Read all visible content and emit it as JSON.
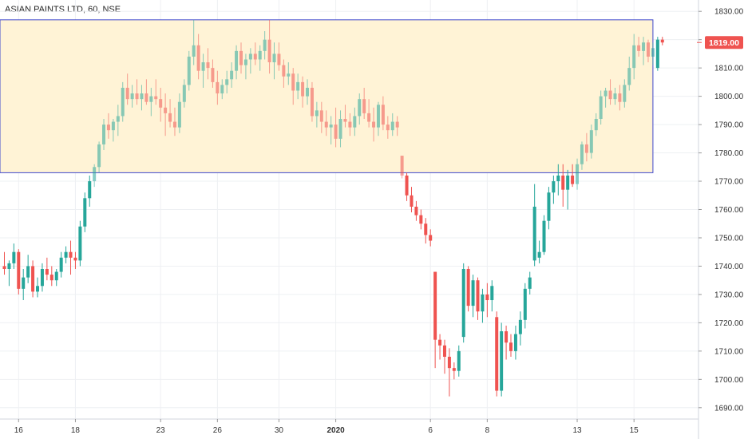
{
  "chart_data": {
    "type": "candlestick",
    "title": "ASIAN PAINTS LTD, 60, NSE",
    "interval": "60",
    "exchange": "NSE",
    "last_price": "1819.00",
    "y_ticks": [
      1690,
      1700,
      1710,
      1720,
      1730,
      1740,
      1750,
      1760,
      1770,
      1780,
      1790,
      1800,
      1810,
      1820,
      1830
    ],
    "y_tick_labels": [
      "1690.00",
      "1700.00",
      "1710.00",
      "1720.00",
      "1730.00",
      "1740.00",
      "1750.00",
      "1760.00",
      "1770.00",
      "1780.00",
      "1790.00",
      "1800.00",
      "1810.00",
      "1820.00",
      "1830.00"
    ],
    "ylim": [
      1686,
      1834
    ],
    "x_tick_labels": [
      {
        "label": "16",
        "index": 3,
        "bold": false
      },
      {
        "label": "18",
        "index": 15,
        "bold": false
      },
      {
        "label": "23",
        "index": 33,
        "bold": false
      },
      {
        "label": "26",
        "index": 45,
        "bold": false
      },
      {
        "label": "30",
        "index": 58,
        "bold": false
      },
      {
        "label": "2020",
        "index": 70,
        "bold": true
      },
      {
        "label": "6",
        "index": 90,
        "bold": false
      },
      {
        "label": "8",
        "index": 102,
        "bold": false
      },
      {
        "label": "13",
        "index": 121,
        "bold": false
      },
      {
        "label": "15",
        "index": 133,
        "bold": false
      }
    ],
    "resistance_zone": {
      "top": 1827,
      "bottom": 1773,
      "from_index": -1,
      "to_index": 137
    },
    "up_color": "#26a69a",
    "down_color": "#ef5350",
    "zone_fill": "#fff3d6",
    "zone_border": "#3f48cc",
    "candles": [
      [
        1740,
        1745,
        1737,
        1739
      ],
      [
        1739,
        1742,
        1733,
        1741
      ],
      [
        1741,
        1748,
        1739,
        1745
      ],
      [
        1745,
        1746,
        1730,
        1732
      ],
      [
        1732,
        1739,
        1728,
        1736
      ],
      [
        1736,
        1744,
        1734,
        1740
      ],
      [
        1740,
        1742,
        1729,
        1731
      ],
      [
        1731,
        1736,
        1729,
        1733
      ],
      [
        1733,
        1741,
        1731,
        1739
      ],
      [
        1739,
        1743,
        1735,
        1737
      ],
      [
        1737,
        1740,
        1733,
        1735
      ],
      [
        1735,
        1739,
        1733,
        1738
      ],
      [
        1738,
        1745,
        1736,
        1743
      ],
      [
        1743,
        1747,
        1741,
        1745
      ],
      [
        1745,
        1749,
        1737,
        1743
      ],
      [
        1743,
        1745,
        1739,
        1742
      ],
      [
        1742,
        1756,
        1740,
        1754
      ],
      [
        1754,
        1766,
        1752,
        1764
      ],
      [
        1764,
        1772,
        1761,
        1770
      ],
      [
        1770,
        1776,
        1768,
        1775
      ],
      [
        1775,
        1784,
        1773,
        1783
      ],
      [
        1783,
        1792,
        1781,
        1790
      ],
      [
        1790,
        1794,
        1785,
        1788
      ],
      [
        1788,
        1792,
        1784,
        1791
      ],
      [
        1791,
        1797,
        1786,
        1793
      ],
      [
        1793,
        1805,
        1791,
        1803
      ],
      [
        1803,
        1808,
        1797,
        1799
      ],
      [
        1799,
        1804,
        1796,
        1801
      ],
      [
        1801,
        1806,
        1797,
        1799
      ],
      [
        1799,
        1804,
        1795,
        1801
      ],
      [
        1801,
        1806,
        1797,
        1798
      ],
      [
        1798,
        1803,
        1793,
        1800
      ],
      [
        1800,
        1806,
        1797,
        1799
      ],
      [
        1799,
        1803,
        1791,
        1796
      ],
      [
        1796,
        1801,
        1786,
        1794
      ],
      [
        1794,
        1799,
        1789,
        1791
      ],
      [
        1791,
        1796,
        1786,
        1789
      ],
      [
        1789,
        1801,
        1787,
        1798
      ],
      [
        1798,
        1806,
        1796,
        1804
      ],
      [
        1804,
        1816,
        1802,
        1814
      ],
      [
        1814,
        1827,
        1811,
        1818
      ],
      [
        1818,
        1822,
        1806,
        1809
      ],
      [
        1809,
        1815,
        1803,
        1812
      ],
      [
        1812,
        1817,
        1806,
        1810
      ],
      [
        1810,
        1813,
        1803,
        1805
      ],
      [
        1805,
        1809,
        1797,
        1801
      ],
      [
        1801,
        1806,
        1799,
        1804
      ],
      [
        1804,
        1809,
        1801,
        1806
      ],
      [
        1806,
        1812,
        1803,
        1809
      ],
      [
        1809,
        1818,
        1806,
        1816
      ],
      [
        1816,
        1819,
        1808,
        1811
      ],
      [
        1811,
        1815,
        1806,
        1813
      ],
      [
        1813,
        1817,
        1808,
        1815
      ],
      [
        1815,
        1819,
        1811,
        1813
      ],
      [
        1813,
        1818,
        1809,
        1816
      ],
      [
        1816,
        1823,
        1813,
        1820
      ],
      [
        1820,
        1827,
        1808,
        1812
      ],
      [
        1812,
        1819,
        1806,
        1815
      ],
      [
        1815,
        1819,
        1809,
        1811
      ],
      [
        1811,
        1813,
        1803,
        1807
      ],
      [
        1807,
        1812,
        1804,
        1808
      ],
      [
        1808,
        1810,
        1797,
        1802
      ],
      [
        1802,
        1808,
        1799,
        1805
      ],
      [
        1805,
        1807,
        1796,
        1800
      ],
      [
        1800,
        1806,
        1797,
        1803
      ],
      [
        1803,
        1805,
        1791,
        1793
      ],
      [
        1793,
        1798,
        1789,
        1795
      ],
      [
        1795,
        1798,
        1787,
        1791
      ],
      [
        1791,
        1795,
        1786,
        1789
      ],
      [
        1789,
        1793,
        1783,
        1790
      ],
      [
        1790,
        1796,
        1782,
        1785
      ],
      [
        1785,
        1795,
        1782,
        1792
      ],
      [
        1792,
        1797,
        1789,
        1791
      ],
      [
        1791,
        1794,
        1786,
        1789
      ],
      [
        1789,
        1796,
        1786,
        1793
      ],
      [
        1793,
        1801,
        1790,
        1799
      ],
      [
        1799,
        1803,
        1792,
        1794
      ],
      [
        1794,
        1799,
        1789,
        1791
      ],
      [
        1791,
        1796,
        1784,
        1789
      ],
      [
        1789,
        1798,
        1786,
        1797
      ],
      [
        1797,
        1800,
        1788,
        1790
      ],
      [
        1790,
        1793,
        1785,
        1788
      ],
      [
        1788,
        1794,
        1786,
        1791
      ],
      [
        1791,
        1793,
        1786,
        1789
      ],
      [
        1779,
        1779,
        1771,
        1772
      ],
      [
        1772,
        1773,
        1763,
        1765
      ],
      [
        1765,
        1768,
        1759,
        1761
      ],
      [
        1761,
        1763,
        1756,
        1758
      ],
      [
        1758,
        1760,
        1753,
        1755
      ],
      [
        1755,
        1757,
        1748,
        1751
      ],
      [
        1751,
        1753,
        1747,
        1749
      ],
      [
        1738,
        1738,
        1704,
        1714
      ],
      [
        1714,
        1716,
        1707,
        1712
      ],
      [
        1712,
        1714,
        1702,
        1708
      ],
      [
        1708,
        1711,
        1694,
        1704
      ],
      [
        1704,
        1706,
        1700,
        1703
      ],
      [
        1703,
        1712,
        1701,
        1710
      ],
      [
        1715,
        1741,
        1713,
        1739
      ],
      [
        1739,
        1740,
        1724,
        1726
      ],
      [
        1726,
        1737,
        1722,
        1735
      ],
      [
        1735,
        1736,
        1721,
        1724
      ],
      [
        1724,
        1732,
        1720,
        1730
      ],
      [
        1730,
        1734,
        1722,
        1728
      ],
      [
        1728,
        1735,
        1724,
        1733
      ],
      [
        1722,
        1724,
        1694,
        1696
      ],
      [
        1696,
        1720,
        1694,
        1717
      ],
      [
        1717,
        1719,
        1707,
        1713
      ],
      [
        1713,
        1716,
        1708,
        1710
      ],
      [
        1710,
        1719,
        1707,
        1716
      ],
      [
        1716,
        1724,
        1712,
        1721
      ],
      [
        1721,
        1734,
        1718,
        1732
      ],
      [
        1732,
        1738,
        1730,
        1736
      ],
      [
        1742,
        1769,
        1740,
        1761
      ],
      [
        1743,
        1749,
        1741,
        1745
      ],
      [
        1745,
        1758,
        1744,
        1756
      ],
      [
        1756,
        1768,
        1753,
        1766
      ],
      [
        1766,
        1772,
        1762,
        1770
      ],
      [
        1770,
        1776,
        1765,
        1772
      ],
      [
        1772,
        1776,
        1761,
        1767
      ],
      [
        1767,
        1774,
        1760,
        1772
      ],
      [
        1772,
        1776,
        1768,
        1769
      ],
      [
        1769,
        1778,
        1767,
        1776
      ],
      [
        1776,
        1784,
        1774,
        1783
      ],
      [
        1783,
        1787,
        1777,
        1780
      ],
      [
        1780,
        1790,
        1778,
        1788
      ],
      [
        1788,
        1794,
        1786,
        1792
      ],
      [
        1792,
        1802,
        1790,
        1800
      ],
      [
        1800,
        1803,
        1796,
        1802
      ],
      [
        1802,
        1806,
        1797,
        1799
      ],
      [
        1799,
        1803,
        1797,
        1801
      ],
      [
        1801,
        1804,
        1795,
        1798
      ],
      [
        1798,
        1806,
        1796,
        1804
      ],
      [
        1804,
        1814,
        1802,
        1810
      ],
      [
        1810,
        1822,
        1806,
        1818
      ],
      [
        1818,
        1821,
        1814,
        1816
      ],
      [
        1816,
        1821,
        1811,
        1819
      ],
      [
        1819,
        1820,
        1812,
        1814
      ],
      [
        1814,
        1819,
        1811,
        1817
      ],
      [
        1810,
        1821,
        1809,
        1820
      ],
      [
        1820,
        1821,
        1818,
        1819
      ]
    ]
  }
}
